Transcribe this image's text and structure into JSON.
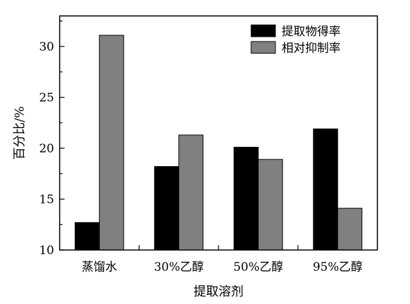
{
  "chart_data": {
    "type": "bar",
    "title": "",
    "xlabel": "提取溶剂",
    "ylabel": "百分比/%",
    "categories": [
      "蒸馏水",
      "30%乙醇",
      "50%乙醇",
      "95%乙醇"
    ],
    "series": [
      {
        "name": "提取物得率",
        "color": "#000000",
        "values": [
          12.7,
          18.2,
          20.1,
          21.9
        ]
      },
      {
        "name": "相对抑制率",
        "color": "#808080",
        "values": [
          31.1,
          21.3,
          18.9,
          14.1
        ]
      }
    ],
    "ylim": [
      10,
      33
    ],
    "yticks": [
      "10",
      "15",
      "20",
      "25",
      "30"
    ],
    "grid": false,
    "legend_position": "top-right"
  }
}
